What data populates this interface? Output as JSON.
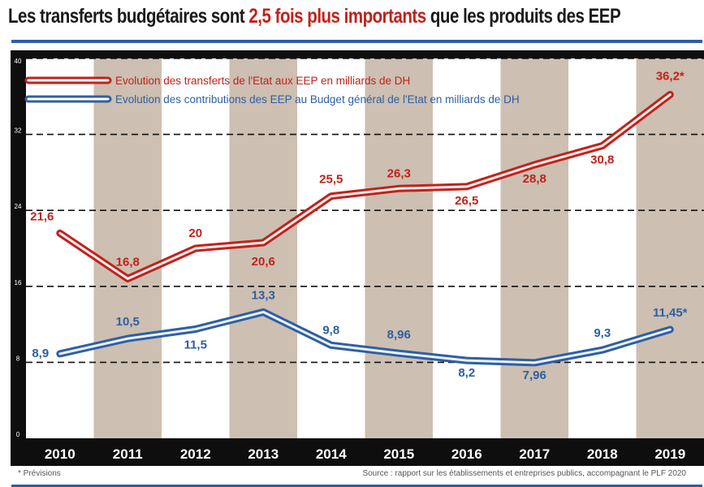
{
  "headline": {
    "part1": "Les transferts budgétaires sont ",
    "highlight": "2,5 fois plus importants",
    "part2": " que les produits des EEP"
  },
  "footnote": "* Prévisions",
  "source": "Source : rapport sur les établissements et entreprises publics, accompagnant le PLF 2020",
  "colors": {
    "red": "#c0221b",
    "blue": "#2d5fa5",
    "stripe": "#cdbfb1",
    "frame": "#0e0e0e"
  },
  "chart_data": {
    "type": "line",
    "categories": [
      "2010",
      "2011",
      "2012",
      "2013",
      "2014",
      "2015",
      "2016",
      "2017",
      "2018",
      "2019"
    ],
    "ylim": [
      0,
      40
    ],
    "yticks": [
      "0",
      "8",
      "16",
      "24",
      "32",
      "40"
    ],
    "grid": true,
    "legend": "top-left",
    "series": [
      {
        "name": "Evolution des transferts de l'Etat aux EEP en milliards de DH",
        "color": "#c0221b",
        "values": [
          21.6,
          16.8,
          20,
          20.6,
          25.5,
          26.3,
          26.5,
          28.8,
          30.8,
          36.2
        ],
        "labels": [
          "21,6",
          "16,8",
          "20",
          "20,6",
          "25,5",
          "26,3",
          "26,5",
          "28,8",
          "30,8",
          "36,2*"
        ]
      },
      {
        "name": "Evolution des contributions des EEP au Budget général de l'Etat en milliards de DH",
        "color": "#2d5fa5",
        "values": [
          8.9,
          10.5,
          11.5,
          13.3,
          9.8,
          8.96,
          8.2,
          7.96,
          9.3,
          11.45
        ],
        "labels": [
          "8,9",
          "10,5",
          "11,5",
          "13,3",
          "9,8",
          "8,96",
          "8,2",
          "7,96",
          "9,3",
          "11,45*"
        ]
      }
    ]
  }
}
